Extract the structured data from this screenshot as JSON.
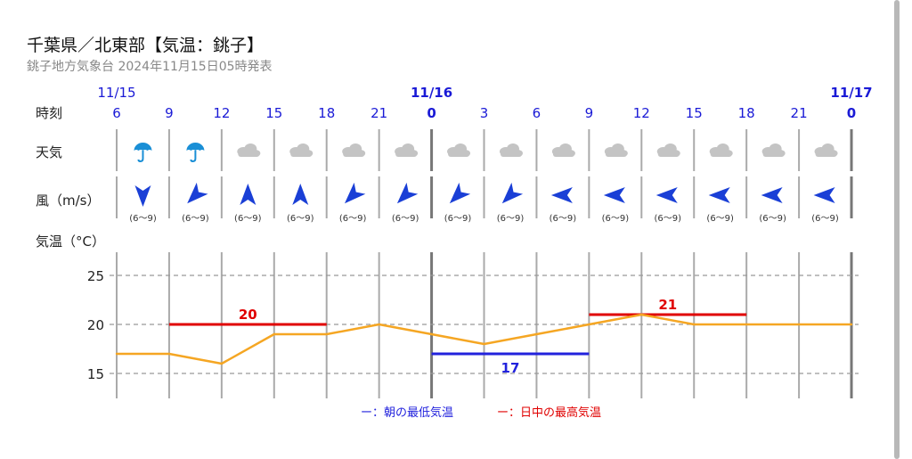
{
  "header": {
    "title": "千葉県／北東部【気温：銚子】",
    "subtitle": "銚子地方気象台 2024年11月15日05時発表"
  },
  "labels": {
    "time": "時刻",
    "weather": "天気",
    "wind": "風（m/s）",
    "temp": "気温（°C）"
  },
  "legend": {
    "min": "ー：朝の最低気温",
    "max": "ー：日中の最高気温"
  },
  "colors": {
    "temp_line": "#f5a623",
    "max_line": "#e00000",
    "min_line": "#2222dd",
    "arrow": "#1a3fd6",
    "cloud": "#c4c4c4",
    "umbrella": "#1a8fd6",
    "grid": "#aaaaaa"
  },
  "chart_data": {
    "type": "line",
    "dates": [
      {
        "label": "11/15",
        "index": 0,
        "bold": false
      },
      {
        "label": "11/16",
        "index": 6,
        "bold": true
      },
      {
        "label": "11/17",
        "index": 14,
        "bold": true
      }
    ],
    "hours": [
      "6",
      "9",
      "12",
      "15",
      "18",
      "21",
      "0",
      "3",
      "6",
      "9",
      "12",
      "15",
      "18",
      "21",
      "0"
    ],
    "bold_hours": [
      6,
      14
    ],
    "weather": [
      "umbrella-icon",
      "umbrella-icon",
      "cloud-icon",
      "cloud-icon",
      "cloud-icon",
      "cloud-icon",
      "cloud-icon",
      "cloud-icon",
      "cloud-icon",
      "cloud-icon",
      "cloud-icon",
      "cloud-icon",
      "cloud-icon",
      "cloud-icon"
    ],
    "wind_direction_deg": [
      180,
      225,
      0,
      0,
      225,
      225,
      225,
      225,
      270,
      270,
      270,
      270,
      270,
      270
    ],
    "wind_speed": [
      "(6～9)",
      "(6～9)",
      "(6～9)",
      "(6～9)",
      "(6～9)",
      "(6～9)",
      "(6～9)",
      "(6～9)",
      "(6～9)",
      "(6～9)",
      "(6～9)",
      "(6～9)",
      "(6～9)",
      "(6～9)"
    ],
    "temperature": [
      17,
      17,
      16,
      19,
      19,
      20,
      19,
      18,
      19,
      20,
      21,
      20,
      20,
      20,
      20
    ],
    "daytime_max": [
      {
        "value": 20,
        "start": 1,
        "end": 4,
        "label": "20"
      },
      {
        "value": 21,
        "start": 9,
        "end": 12,
        "label": "21"
      }
    ],
    "morning_min": [
      {
        "value": 17,
        "start": 6,
        "end": 9,
        "label": "17"
      }
    ],
    "y_ticks": [
      "15",
      "20",
      "25"
    ],
    "ylim": [
      13,
      27
    ],
    "grid": true
  }
}
